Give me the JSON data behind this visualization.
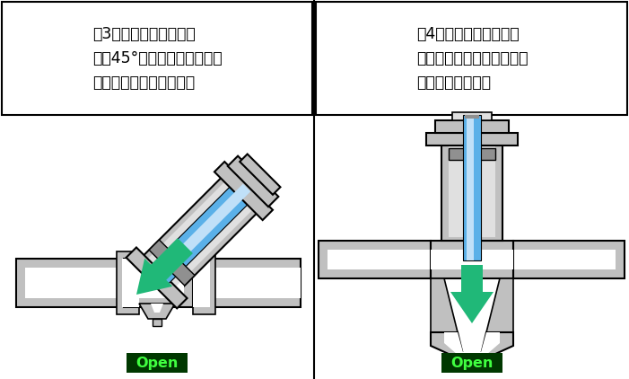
{
  "text_left": "（3）直流阀：阀体与阀\n杆成45°，流动阻力小，压降\n也小，便于检修和更换。",
  "text_right": "（4）针形阀：阀瓣为锥\n形针形，阀杆通常用细螺纹\n以取得微量调节。",
  "open_label": "Open",
  "g": "#c0c0c0",
  "gd": "#909090",
  "gl": "#e0e0e0",
  "wh": "#ffffff",
  "bl": "#5ab0e8",
  "bll": "#c0e0f8",
  "grn": "#20b878",
  "blk": "#000000",
  "open_bg": "#003800",
  "open_fg": "#40ff40"
}
